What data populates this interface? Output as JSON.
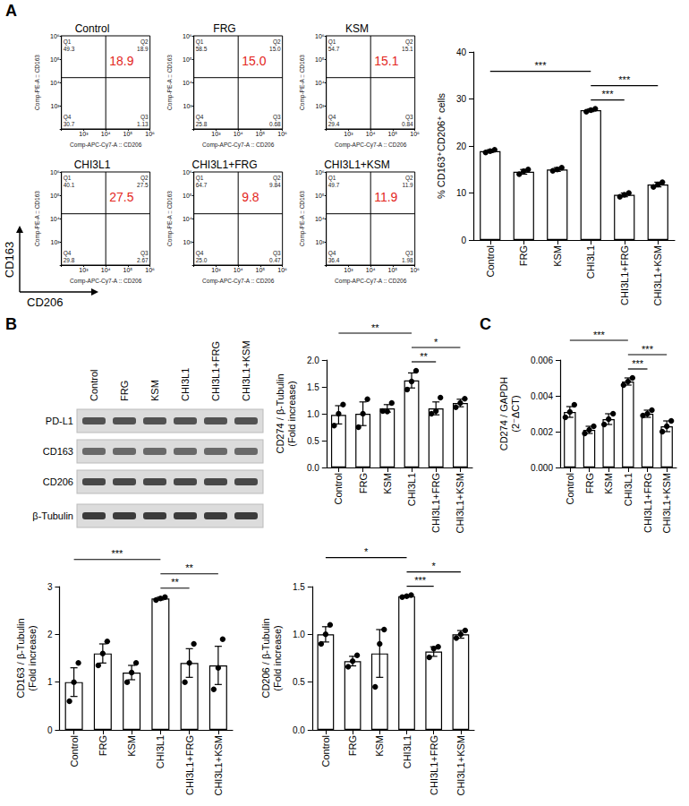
{
  "panels": [
    "A",
    "B",
    "C"
  ],
  "flow_axes": {
    "x": "CD206",
    "y": "CD163"
  },
  "chart_data": [
    {
      "type": "quadrant",
      "title": "Control",
      "x_label": "Comp-APC-Cy7-A :: CD206",
      "y_label": "Comp-PE-A :: CD163",
      "log": true,
      "xlim": [
        100,
        1000000
      ],
      "ylim": [
        100,
        1000000
      ],
      "xticks": [
        {
          "value": 1000,
          "label": "10³"
        },
        {
          "value": 10000,
          "label": "10⁴"
        },
        {
          "value": 100000,
          "label": "10⁵"
        },
        {
          "value": 1000000,
          "label": "10⁶"
        }
      ],
      "yticks": [
        {
          "value": 1000,
          "label": "10³"
        },
        {
          "value": 10000,
          "label": "10⁴"
        },
        {
          "value": 100000,
          "label": "10⁵"
        },
        {
          "value": 1000000,
          "label": "10⁶"
        }
      ],
      "gate": {
        "x": 10000,
        "y": 16000
      },
      "quadrants": [
        {
          "name": "Q1",
          "value": 49.3
        },
        {
          "name": "Q2",
          "value": 18.9
        },
        {
          "name": "Q3",
          "value": 1.13
        },
        {
          "name": "Q4",
          "value": 30.7
        }
      ],
      "annotation": 18.9,
      "color": "#e3261c"
    },
    {
      "type": "quadrant",
      "title": "FRG",
      "x_label": "Comp-APC-Cy7-A :: CD206",
      "y_label": "Comp-PE-A :: CD163",
      "log": true,
      "xlim": [
        100,
        1000000
      ],
      "ylim": [
        100,
        1000000
      ],
      "xticks": [
        {
          "value": 1000,
          "label": "10³"
        },
        {
          "value": 10000,
          "label": "10⁴"
        },
        {
          "value": 100000,
          "label": "10⁵"
        },
        {
          "value": 1000000,
          "label": "10⁶"
        }
      ],
      "yticks": [
        {
          "value": 1000,
          "label": "10³"
        },
        {
          "value": 10000,
          "label": "10⁴"
        },
        {
          "value": 100000,
          "label": "10⁵"
        },
        {
          "value": 1000000,
          "label": "10⁶"
        }
      ],
      "gate": {
        "x": 10000,
        "y": 16000
      },
      "quadrants": [
        {
          "name": "Q1",
          "value": 58.5
        },
        {
          "name": "Q2",
          "value": 15.0,
          "label": "15.0"
        },
        {
          "name": "Q3",
          "value": 0.68
        },
        {
          "name": "Q4",
          "value": 25.8
        }
      ],
      "annotation": {
        "value": 15.0,
        "label": "15.0"
      },
      "color": "#e3261c"
    },
    {
      "type": "quadrant",
      "title": "KSM",
      "x_label": "Comp-APC-Cy7-A :: CD206",
      "y_label": "Comp-PE-A :: CD163",
      "log": true,
      "xlim": [
        100,
        1000000
      ],
      "ylim": [
        100,
        1000000
      ],
      "xticks": [
        {
          "value": 1000,
          "label": "10³"
        },
        {
          "value": 10000,
          "label": "10⁴"
        },
        {
          "value": 100000,
          "label": "10⁵"
        },
        {
          "value": 1000000,
          "label": "10⁶"
        }
      ],
      "yticks": [
        {
          "value": 1000,
          "label": "10³"
        },
        {
          "value": 10000,
          "label": "10⁴"
        },
        {
          "value": 100000,
          "label": "10⁵"
        },
        {
          "value": 1000000,
          "label": "10⁶"
        }
      ],
      "gate": {
        "x": 10000,
        "y": 16000
      },
      "quadrants": [
        {
          "name": "Q1",
          "value": 54.7
        },
        {
          "name": "Q2",
          "value": 15.1
        },
        {
          "name": "Q3",
          "value": 0.84
        },
        {
          "name": "Q4",
          "value": 29.4
        }
      ],
      "annotation": 15.1,
      "color": "#e3261c"
    },
    {
      "type": "quadrant",
      "title": "CHI3L1",
      "x_label": "Comp-APC-Cy7-A :: CD206",
      "y_label": "Comp-PE-A :: CD163",
      "log": true,
      "xlim": [
        100,
        1000000
      ],
      "ylim": [
        100,
        1000000
      ],
      "xticks": [
        {
          "value": 1000,
          "label": "10³"
        },
        {
          "value": 10000,
          "label": "10⁴"
        },
        {
          "value": 100000,
          "label": "10⁵"
        },
        {
          "value": 1000000,
          "label": "10⁶"
        }
      ],
      "yticks": [
        {
          "value": 1000,
          "label": "10³"
        },
        {
          "value": 10000,
          "label": "10⁴"
        },
        {
          "value": 100000,
          "label": "10⁵"
        },
        {
          "value": 1000000,
          "label": "10⁶"
        }
      ],
      "gate": {
        "x": 10000,
        "y": 16000
      },
      "quadrants": [
        {
          "name": "Q1",
          "value": 40.1
        },
        {
          "name": "Q2",
          "value": 27.5
        },
        {
          "name": "Q3",
          "value": 2.67
        },
        {
          "name": "Q4",
          "value": 29.8
        }
      ],
      "annotation": 27.5,
      "color": "#e3261c"
    },
    {
      "type": "quadrant",
      "title": "CHI3L1+FRG",
      "x_label": "Comp-APC-Cy7-A :: CD206",
      "y_label": "Comp-PE-A :: CD163",
      "log": true,
      "xlim": [
        100,
        1000000
      ],
      "ylim": [
        100,
        1000000
      ],
      "xticks": [
        {
          "value": 1000,
          "label": "10³"
        },
        {
          "value": 10000,
          "label": "10⁴"
        },
        {
          "value": 100000,
          "label": "10⁵"
        },
        {
          "value": 1000000,
          "label": "10⁶"
        }
      ],
      "yticks": [
        {
          "value": 1000,
          "label": "10³"
        },
        {
          "value": 10000,
          "label": "10⁴"
        },
        {
          "value": 100000,
          "label": "10⁵"
        },
        {
          "value": 1000000,
          "label": "10⁶"
        }
      ],
      "gate": {
        "x": 10000,
        "y": 16000
      },
      "quadrants": [
        {
          "name": "Q1",
          "value": 64.7
        },
        {
          "name": "Q2",
          "value": 9.84
        },
        {
          "name": "Q3",
          "value": 0.47
        },
        {
          "name": "Q4",
          "value": 25.0,
          "label": "25.0"
        }
      ],
      "annotation": 9.8,
      "color": "#e3261c"
    },
    {
      "type": "quadrant",
      "title": "CHI3L1+KSM",
      "x_label": "Comp-APC-Cy7-A :: CD206",
      "y_label": "Comp-PE-A :: CD163",
      "log": true,
      "xlim": [
        100,
        1000000
      ],
      "ylim": [
        100,
        1000000
      ],
      "xticks": [
        {
          "value": 1000,
          "label": "10³"
        },
        {
          "value": 10000,
          "label": "10⁴"
        },
        {
          "value": 100000,
          "label": "10⁵"
        },
        {
          "value": 1000000,
          "label": "10⁶"
        }
      ],
      "yticks": [
        {
          "value": 1000,
          "label": "10³"
        },
        {
          "value": 10000,
          "label": "10⁴"
        },
        {
          "value": 100000,
          "label": "10⁵"
        },
        {
          "value": 1000000,
          "label": "10⁶"
        }
      ],
      "gate": {
        "x": 10000,
        "y": 16000
      },
      "quadrants": [
        {
          "name": "Q1",
          "value": 49.7
        },
        {
          "name": "Q2",
          "value": 11.9
        },
        {
          "name": "Q3",
          "value": 1.98
        },
        {
          "name": "Q4",
          "value": 36.4
        }
      ],
      "annotation": 11.9,
      "color": "#e3261c"
    },
    {
      "type": "bar",
      "y_label": "% CD163⁺CD206⁺ cells",
      "categories": [
        "Control",
        "FRG",
        "KSM",
        "CHI3L1",
        "CHI3L1+FRG",
        "CHI3L1+KSM"
      ],
      "values": [
        18.9,
        14.5,
        15.0,
        27.6,
        9.6,
        11.8
      ],
      "errors": [
        0.3,
        0.5,
        0.4,
        0.3,
        0.4,
        0.5
      ],
      "points": [
        [
          18.6,
          18.9,
          19.2
        ],
        [
          14.0,
          14.6,
          15.0
        ],
        [
          14.7,
          15.0,
          15.4
        ],
        [
          27.3,
          27.6,
          27.9
        ],
        [
          9.2,
          9.6,
          10.0
        ],
        [
          11.3,
          11.8,
          12.3
        ]
      ],
      "color": "#ffffff",
      "ylim": [
        0,
        40
      ],
      "yticks": [
        0,
        10,
        20,
        30,
        40
      ],
      "significance": [
        {
          "from": 0,
          "to": 3,
          "label": "***"
        },
        {
          "from": 3,
          "to": 4,
          "label": "***"
        },
        {
          "from": 3,
          "to": 5,
          "label": "***"
        }
      ]
    },
    {
      "type": "bar",
      "y_label": "CD274 / β-Tubulin (Fold increase)",
      "categories": [
        "Control",
        "FRG",
        "KSM",
        "CHI3L1",
        "CHI3L1+FRG",
        "CHI3L1+KSM"
      ],
      "values": [
        0.98,
        1.0,
        1.1,
        1.62,
        1.1,
        1.2
      ],
      "errors": [
        0.17,
        0.22,
        0.07,
        0.14,
        0.12,
        0.07
      ],
      "points": [
        [
          0.78,
          1.0,
          1.17
        ],
        [
          0.75,
          1.0,
          1.27
        ],
        [
          1.05,
          1.04,
          1.2
        ],
        [
          1.45,
          1.6,
          1.8
        ],
        [
          1.0,
          1.05,
          1.3
        ],
        [
          1.12,
          1.2,
          1.28
        ]
      ],
      "color": "#ffffff",
      "ylim": [
        0,
        2
      ],
      "yticks": [
        {
          "value": 0,
          "label": "0.0"
        },
        {
          "value": 0.5,
          "label": "0.5"
        },
        {
          "value": 1,
          "label": "1.0"
        },
        {
          "value": 1.5,
          "label": "1.5"
        },
        {
          "value": 2,
          "label": "2.0"
        }
      ],
      "significance": [
        {
          "from": 0,
          "to": 3,
          "label": "**"
        },
        {
          "from": 3,
          "to": 4,
          "label": "**"
        },
        {
          "from": 3,
          "to": 5,
          "label": "*"
        }
      ]
    },
    {
      "type": "bar",
      "y_label": "CD274 / GAPDH (2⁻ΔCT)",
      "categories": [
        "Control",
        "FRG",
        "KSM",
        "CHI3L1",
        "CHI3L1+FRG",
        "CHI3L1+KSM"
      ],
      "values": [
        0.0031,
        0.0021,
        0.0027,
        0.0048,
        0.003,
        0.0023
      ],
      "errors": [
        0.0003,
        0.0002,
        0.0003,
        0.0002,
        0.0002,
        0.0003
      ],
      "points": [
        [
          0.0028,
          0.0031,
          0.0035
        ],
        [
          0.0019,
          0.0021,
          0.0023
        ],
        [
          0.0024,
          0.0027,
          0.003
        ],
        [
          0.0046,
          0.0048,
          0.005
        ],
        [
          0.0029,
          0.003,
          0.0032
        ],
        [
          0.002,
          0.0023,
          0.0026
        ]
      ],
      "color": "#ffffff",
      "ylim": [
        0,
        0.006
      ],
      "yticks": [
        {
          "value": 0,
          "label": "0.000"
        },
        {
          "value": 0.002,
          "label": "0.002"
        },
        {
          "value": 0.004,
          "label": "0.004"
        },
        {
          "value": 0.006,
          "label": "0.006"
        }
      ],
      "significance": [
        {
          "from": 0,
          "to": 3,
          "label": "***"
        },
        {
          "from": 3,
          "to": 4,
          "label": "***"
        },
        {
          "from": 3,
          "to": 5,
          "label": "***"
        }
      ]
    },
    {
      "type": "bar",
      "y_label": "CD163 / β-Tubulin (Fold increase)",
      "categories": [
        "Control",
        "FRG",
        "KSM",
        "CHI3L1",
        "CHI3L1+FRG",
        "CHI3L1+KSM"
      ],
      "values": [
        1.0,
        1.6,
        1.2,
        2.75,
        1.4,
        1.35
      ],
      "errors": [
        0.3,
        0.2,
        0.15,
        0.03,
        0.3,
        0.4
      ],
      "points": [
        [
          0.6,
          1.0,
          1.4
        ],
        [
          1.35,
          1.6,
          1.85
        ],
        [
          1.0,
          1.2,
          1.4
        ],
        [
          2.72,
          2.75,
          2.78
        ],
        [
          1.0,
          1.4,
          1.8
        ],
        [
          0.85,
          1.3,
          1.9
        ]
      ],
      "color": "#ffffff",
      "ylim": [
        0,
        3
      ],
      "yticks": [
        0,
        1,
        2,
        3
      ],
      "significance": [
        {
          "from": 0,
          "to": 3,
          "label": "***"
        },
        {
          "from": 3,
          "to": 4,
          "label": "**"
        },
        {
          "from": 3,
          "to": 5,
          "label": "**"
        }
      ]
    },
    {
      "type": "bar",
      "y_label": "CD206 / β-Tubulin (Fold increase)",
      "categories": [
        "Control",
        "FRG",
        "KSM",
        "CHI3L1",
        "CHI3L1+FRG",
        "CHI3L1+KSM"
      ],
      "values": [
        1.0,
        0.72,
        0.8,
        1.4,
        0.82,
        1.0
      ],
      "errors": [
        0.08,
        0.05,
        0.25,
        0.01,
        0.05,
        0.04
      ],
      "points": [
        [
          0.9,
          1.0,
          1.1
        ],
        [
          0.66,
          0.72,
          0.78
        ],
        [
          0.45,
          0.9,
          1.05
        ],
        [
          1.39,
          1.4,
          1.41
        ],
        [
          0.76,
          0.85,
          0.87
        ],
        [
          0.96,
          1.0,
          1.04
        ]
      ],
      "color": "#ffffff",
      "ylim": [
        0,
        1.5
      ],
      "yticks": [
        {
          "value": 0,
          "label": "0.0"
        },
        {
          "value": 0.5,
          "label": "0.5"
        },
        {
          "value": 1,
          "label": "1.0"
        },
        {
          "value": 1.5,
          "label": "1.5"
        }
      ],
      "significance": [
        {
          "from": 0,
          "to": 3,
          "label": "*"
        },
        {
          "from": 3,
          "to": 4,
          "label": "***"
        },
        {
          "from": 3,
          "to": 5,
          "label": "*"
        }
      ]
    }
  ],
  "blot": {
    "columns": [
      "Control",
      "FRG",
      "KSM",
      "CHI3L1",
      "CHI3L1+FRG",
      "CHI3L1+KSM"
    ],
    "rows": [
      "PD-L1",
      "CD163",
      "CD206",
      "β-Tubulin"
    ]
  }
}
